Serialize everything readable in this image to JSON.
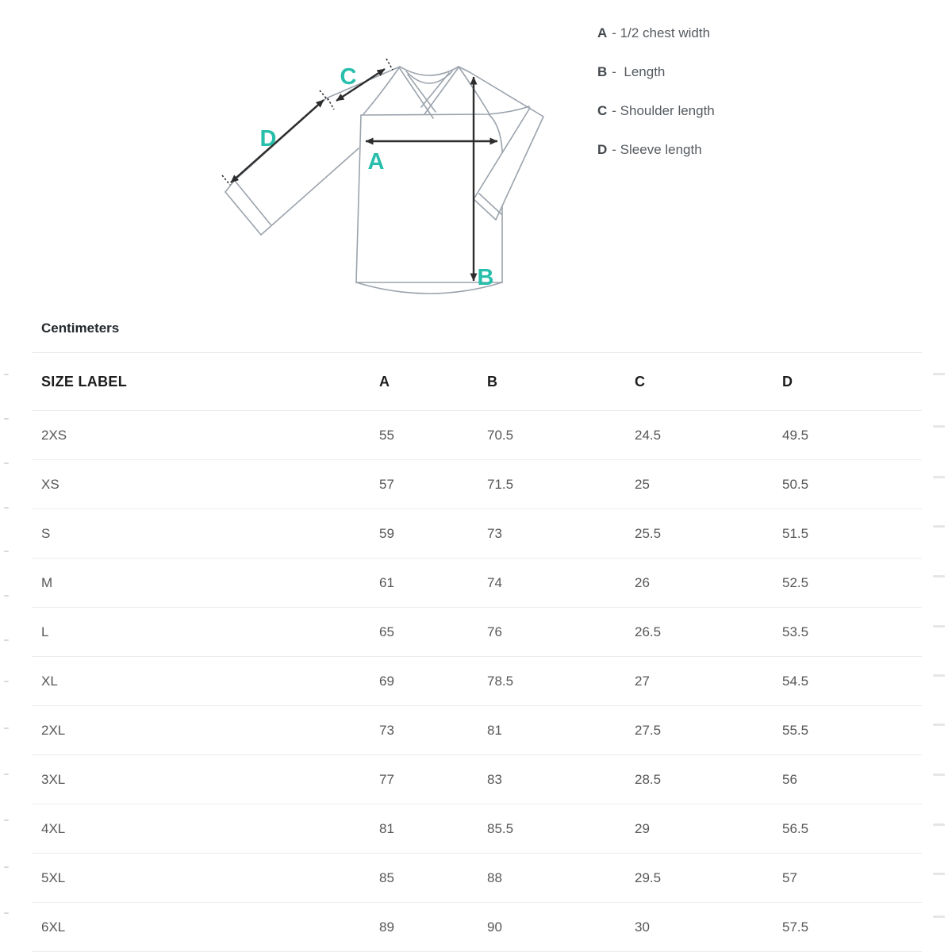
{
  "accent_color": "#27BFAB",
  "legend": {
    "items": [
      {
        "letter": "A",
        "description": "- 1/2 chest width"
      },
      {
        "letter": "B",
        "description": "-  Length"
      },
      {
        "letter": "C",
        "description": "- Shoulder length"
      },
      {
        "letter": "D",
        "description": "- Sleeve length"
      }
    ]
  },
  "diagram": {
    "labels": {
      "a": "A",
      "b": "B",
      "c": "C",
      "d": "D"
    }
  },
  "section_title": "Centimeters",
  "table": {
    "columns": [
      "SIZE LABEL",
      "A",
      "B",
      "C",
      "D"
    ],
    "rows": [
      [
        "2XS",
        "55",
        "70.5",
        "24.5",
        "49.5"
      ],
      [
        "XS",
        "57",
        "71.5",
        "25",
        "50.5"
      ],
      [
        "S",
        "59",
        "73",
        "25.5",
        "51.5"
      ],
      [
        "M",
        "61",
        "74",
        "26",
        "52.5"
      ],
      [
        "L",
        "65",
        "76",
        "26.5",
        "53.5"
      ],
      [
        "XL",
        "69",
        "78.5",
        "27",
        "54.5"
      ],
      [
        "2XL",
        "73",
        "81",
        "27.5",
        "55.5"
      ],
      [
        "3XL",
        "77",
        "83",
        "28.5",
        "56"
      ],
      [
        "4XL",
        "81",
        "85.5",
        "29",
        "56.5"
      ],
      [
        "5XL",
        "85",
        "88",
        "29.5",
        "57"
      ],
      [
        "6XL",
        "89",
        "90",
        "30",
        "57.5"
      ]
    ]
  }
}
